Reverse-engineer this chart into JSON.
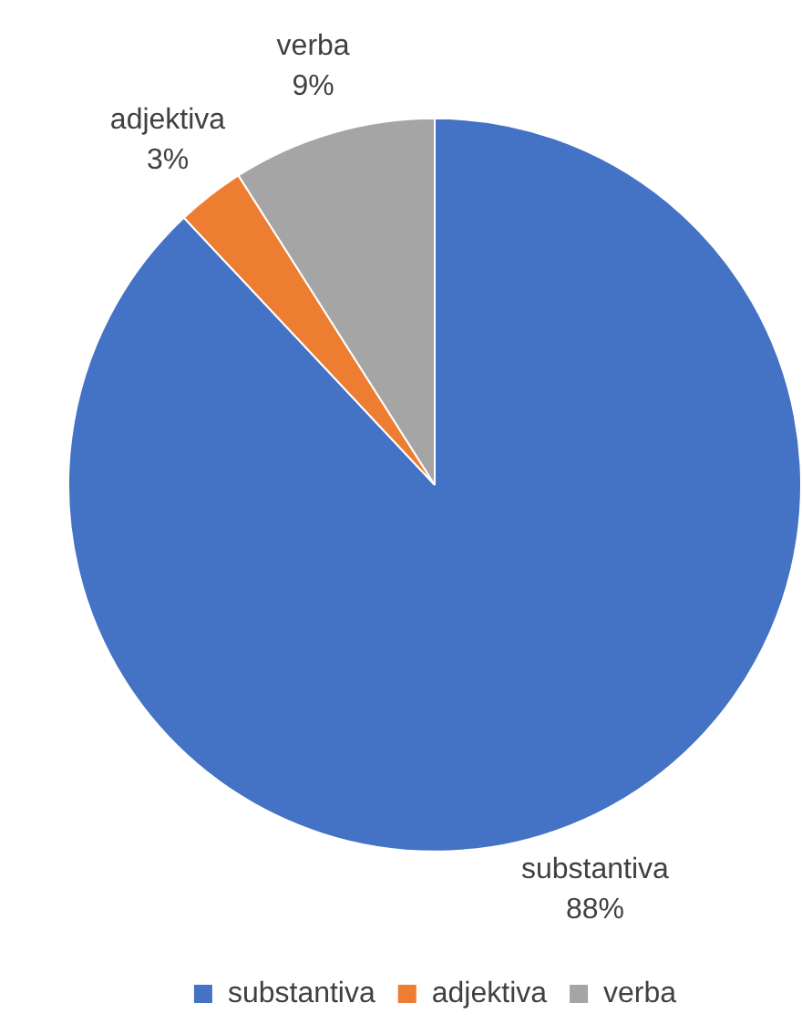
{
  "chart_data": {
    "type": "pie",
    "categories": [
      "substantiva",
      "adjektiva",
      "verba"
    ],
    "values": [
      88,
      3,
      9
    ],
    "colors": [
      "#4472c4",
      "#ed7d31",
      "#a5a5a5"
    ],
    "value_labels": [
      "88%",
      "3%",
      "9%"
    ],
    "legend": "bottom"
  }
}
